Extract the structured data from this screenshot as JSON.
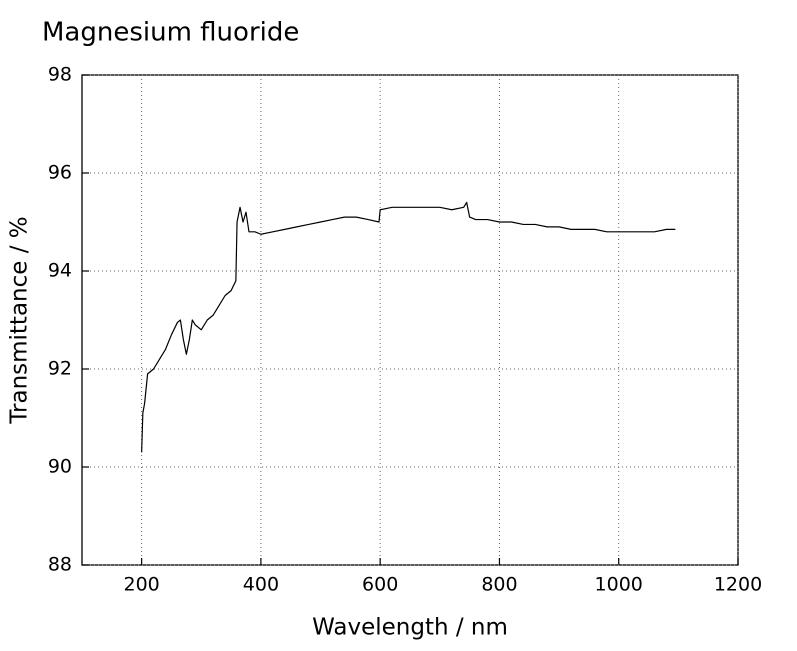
{
  "chart_data": {
    "type": "line",
    "title": "Magnesium fluoride",
    "x_label": "Wavelength / nm",
    "y_label": "Transmittance / %",
    "xlim": [
      100,
      1200
    ],
    "ylim": [
      88,
      98
    ],
    "xticks": [
      200,
      400,
      600,
      800,
      1000,
      1200
    ],
    "yticks": [
      88,
      90,
      92,
      94,
      96,
      98
    ],
    "grid": true,
    "series": [
      {
        "color": "#000000",
        "x": [
          200,
          202,
          205,
          210,
          220,
          230,
          240,
          250,
          260,
          265,
          270,
          275,
          280,
          285,
          290,
          300,
          310,
          320,
          330,
          340,
          350,
          358,
          360,
          365,
          370,
          375,
          380,
          390,
          400,
          420,
          440,
          460,
          480,
          500,
          520,
          540,
          560,
          580,
          598,
          600,
          620,
          640,
          660,
          680,
          700,
          720,
          740,
          745,
          750,
          760,
          780,
          800,
          820,
          840,
          860,
          880,
          900,
          920,
          940,
          960,
          980,
          1000,
          1020,
          1040,
          1060,
          1080,
          1095
        ],
        "values": [
          90.3,
          91.1,
          91.3,
          91.9,
          92.0,
          92.2,
          92.4,
          92.7,
          92.95,
          93.0,
          92.6,
          92.3,
          92.6,
          93.0,
          92.9,
          92.8,
          93.0,
          93.1,
          93.3,
          93.5,
          93.6,
          93.8,
          95.0,
          95.3,
          95.0,
          95.2,
          94.8,
          94.8,
          94.75,
          94.8,
          94.85,
          94.9,
          94.95,
          95.0,
          95.05,
          95.1,
          95.1,
          95.05,
          95.0,
          95.25,
          95.3,
          95.3,
          95.3,
          95.3,
          95.3,
          95.25,
          95.3,
          95.4,
          95.1,
          95.05,
          95.05,
          95.0,
          95.0,
          94.95,
          94.95,
          94.9,
          94.9,
          94.85,
          94.85,
          94.85,
          94.8,
          94.8,
          94.8,
          94.8,
          94.8,
          94.85,
          94.85
        ]
      }
    ]
  }
}
